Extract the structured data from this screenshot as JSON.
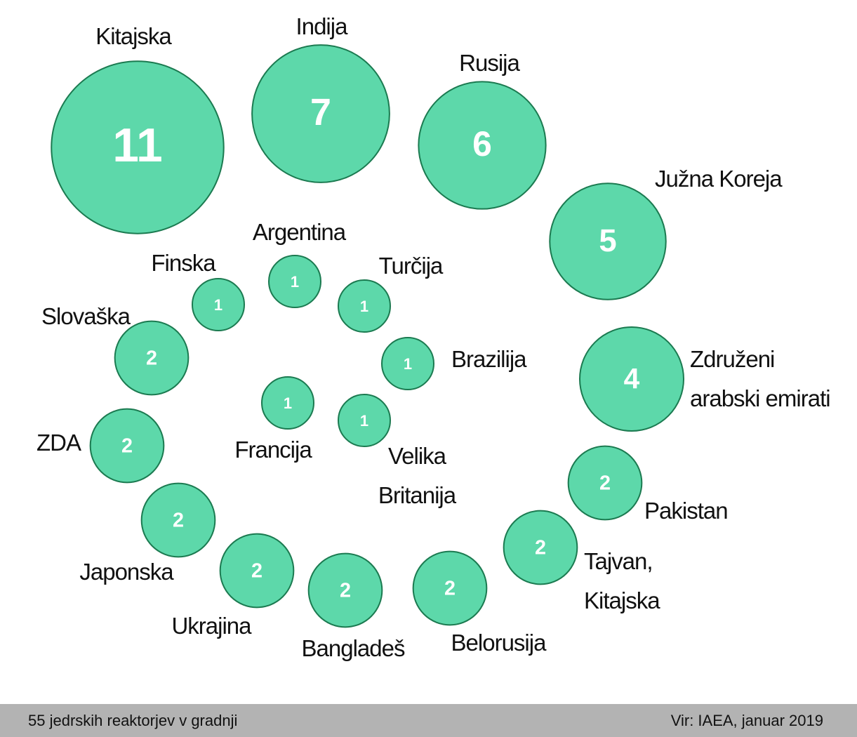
{
  "chart_data": {
    "type": "bubble",
    "categories": [
      "Kitajska",
      "Indija",
      "Rusija",
      "Južna Koreja",
      "Združeni arabski emirati",
      "Pakistan",
      "Tajvan, Kitajska",
      "Belorusija",
      "Bangladeš",
      "Ukrajina",
      "Japonska",
      "ZDA",
      "Slovaška",
      "Finska",
      "Argentina",
      "Turčija",
      "Brazilija",
      "Velika Britanija",
      "Francija"
    ],
    "values": [
      11,
      7,
      6,
      5,
      4,
      2,
      2,
      2,
      2,
      2,
      2,
      2,
      2,
      1,
      1,
      1,
      1,
      1,
      1
    ],
    "color": "#5dd8aa",
    "note": "55 jedrskih reaktorjev v gradnji",
    "source": "Vir: IAEA, januar 2019"
  }
}
